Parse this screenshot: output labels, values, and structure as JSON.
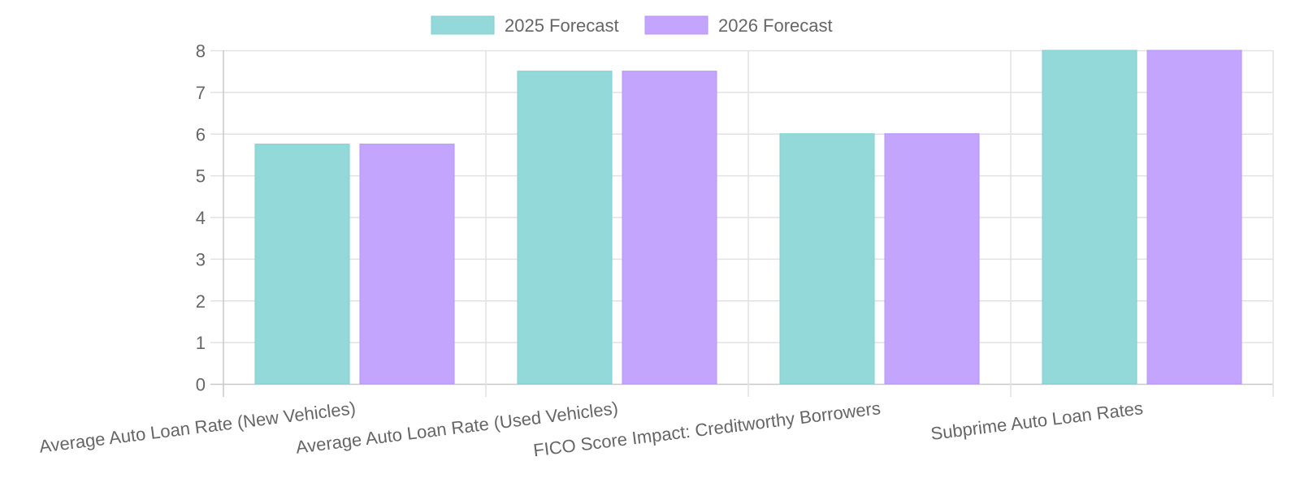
{
  "chart_data": {
    "type": "bar",
    "categories": [
      "Average Auto Loan Rate (New Vehicles)",
      "Average Auto Loan Rate (Used Vehicles)",
      "FICO Score Impact: Creditworthy Borrowers",
      "Subprime Auto Loan Rates"
    ],
    "series": [
      {
        "name": "2025 Forecast",
        "values": [
          5.75,
          7.5,
          6,
          8
        ],
        "color": "#94d9da",
        "border": "#7fcfd0"
      },
      {
        "name": "2026 Forecast",
        "values": [
          5.75,
          7.5,
          6,
          8
        ],
        "color": "#c3a5fe",
        "border": "#b493fa"
      }
    ],
    "ylim": [
      0,
      8
    ],
    "yticks": [
      0,
      1,
      2,
      3,
      4,
      5,
      6,
      7,
      8
    ],
    "grid": true,
    "legend": "top"
  }
}
